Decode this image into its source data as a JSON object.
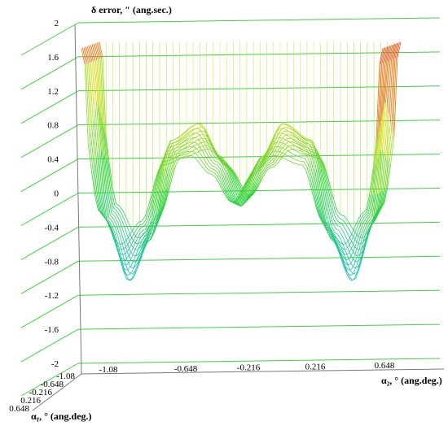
{
  "chart_data": {
    "type": "surface-wireframe-3d",
    "zlabel": "δ error, ″ (ang.sec.)",
    "xlabel": "α₂, ° (ang.deg.)",
    "ylabel": "αᵧ, ° (ang.deg.)",
    "z_ticks": [
      "2",
      "1.6",
      "1.2",
      "0.8",
      "0.4",
      "0",
      "-0.4",
      "-0.8",
      "-1.2",
      "-1.6",
      "-2"
    ],
    "z_tick_values": [
      2,
      1.6,
      1.2,
      0.8,
      0.4,
      0,
      -0.4,
      -0.8,
      -1.2,
      -1.6,
      -2
    ],
    "zlim": [
      -2,
      2
    ],
    "x_ticks": [
      "-1.08",
      "-0.648",
      "-0.216",
      "0.216",
      "0.648"
    ],
    "y_ticks": [
      "-1.08",
      "-0.648",
      "-0.216",
      "0.216",
      "0.648"
    ],
    "x_range": [
      -1.08,
      1.08
    ],
    "y_range": [
      -1.08,
      1.08
    ],
    "surface_profile_x": [
      -1.08,
      -0.95,
      -0.8,
      -0.65,
      -0.5,
      -0.3,
      -0.15,
      0,
      0.15,
      0.3,
      0.5,
      0.65,
      0.8,
      0.95,
      1.08
    ],
    "surface_profile_z": [
      1.7,
      -0.4,
      -1.1,
      -0.6,
      0.6,
      0.8,
      0.4,
      -0.2,
      0.4,
      0.8,
      0.6,
      -0.6,
      -1.1,
      -0.4,
      1.7
    ],
    "grid": true,
    "colormap": [
      "#3060c0",
      "#20c0c0",
      "#30d030",
      "#e0e020",
      "#e02020"
    ]
  }
}
